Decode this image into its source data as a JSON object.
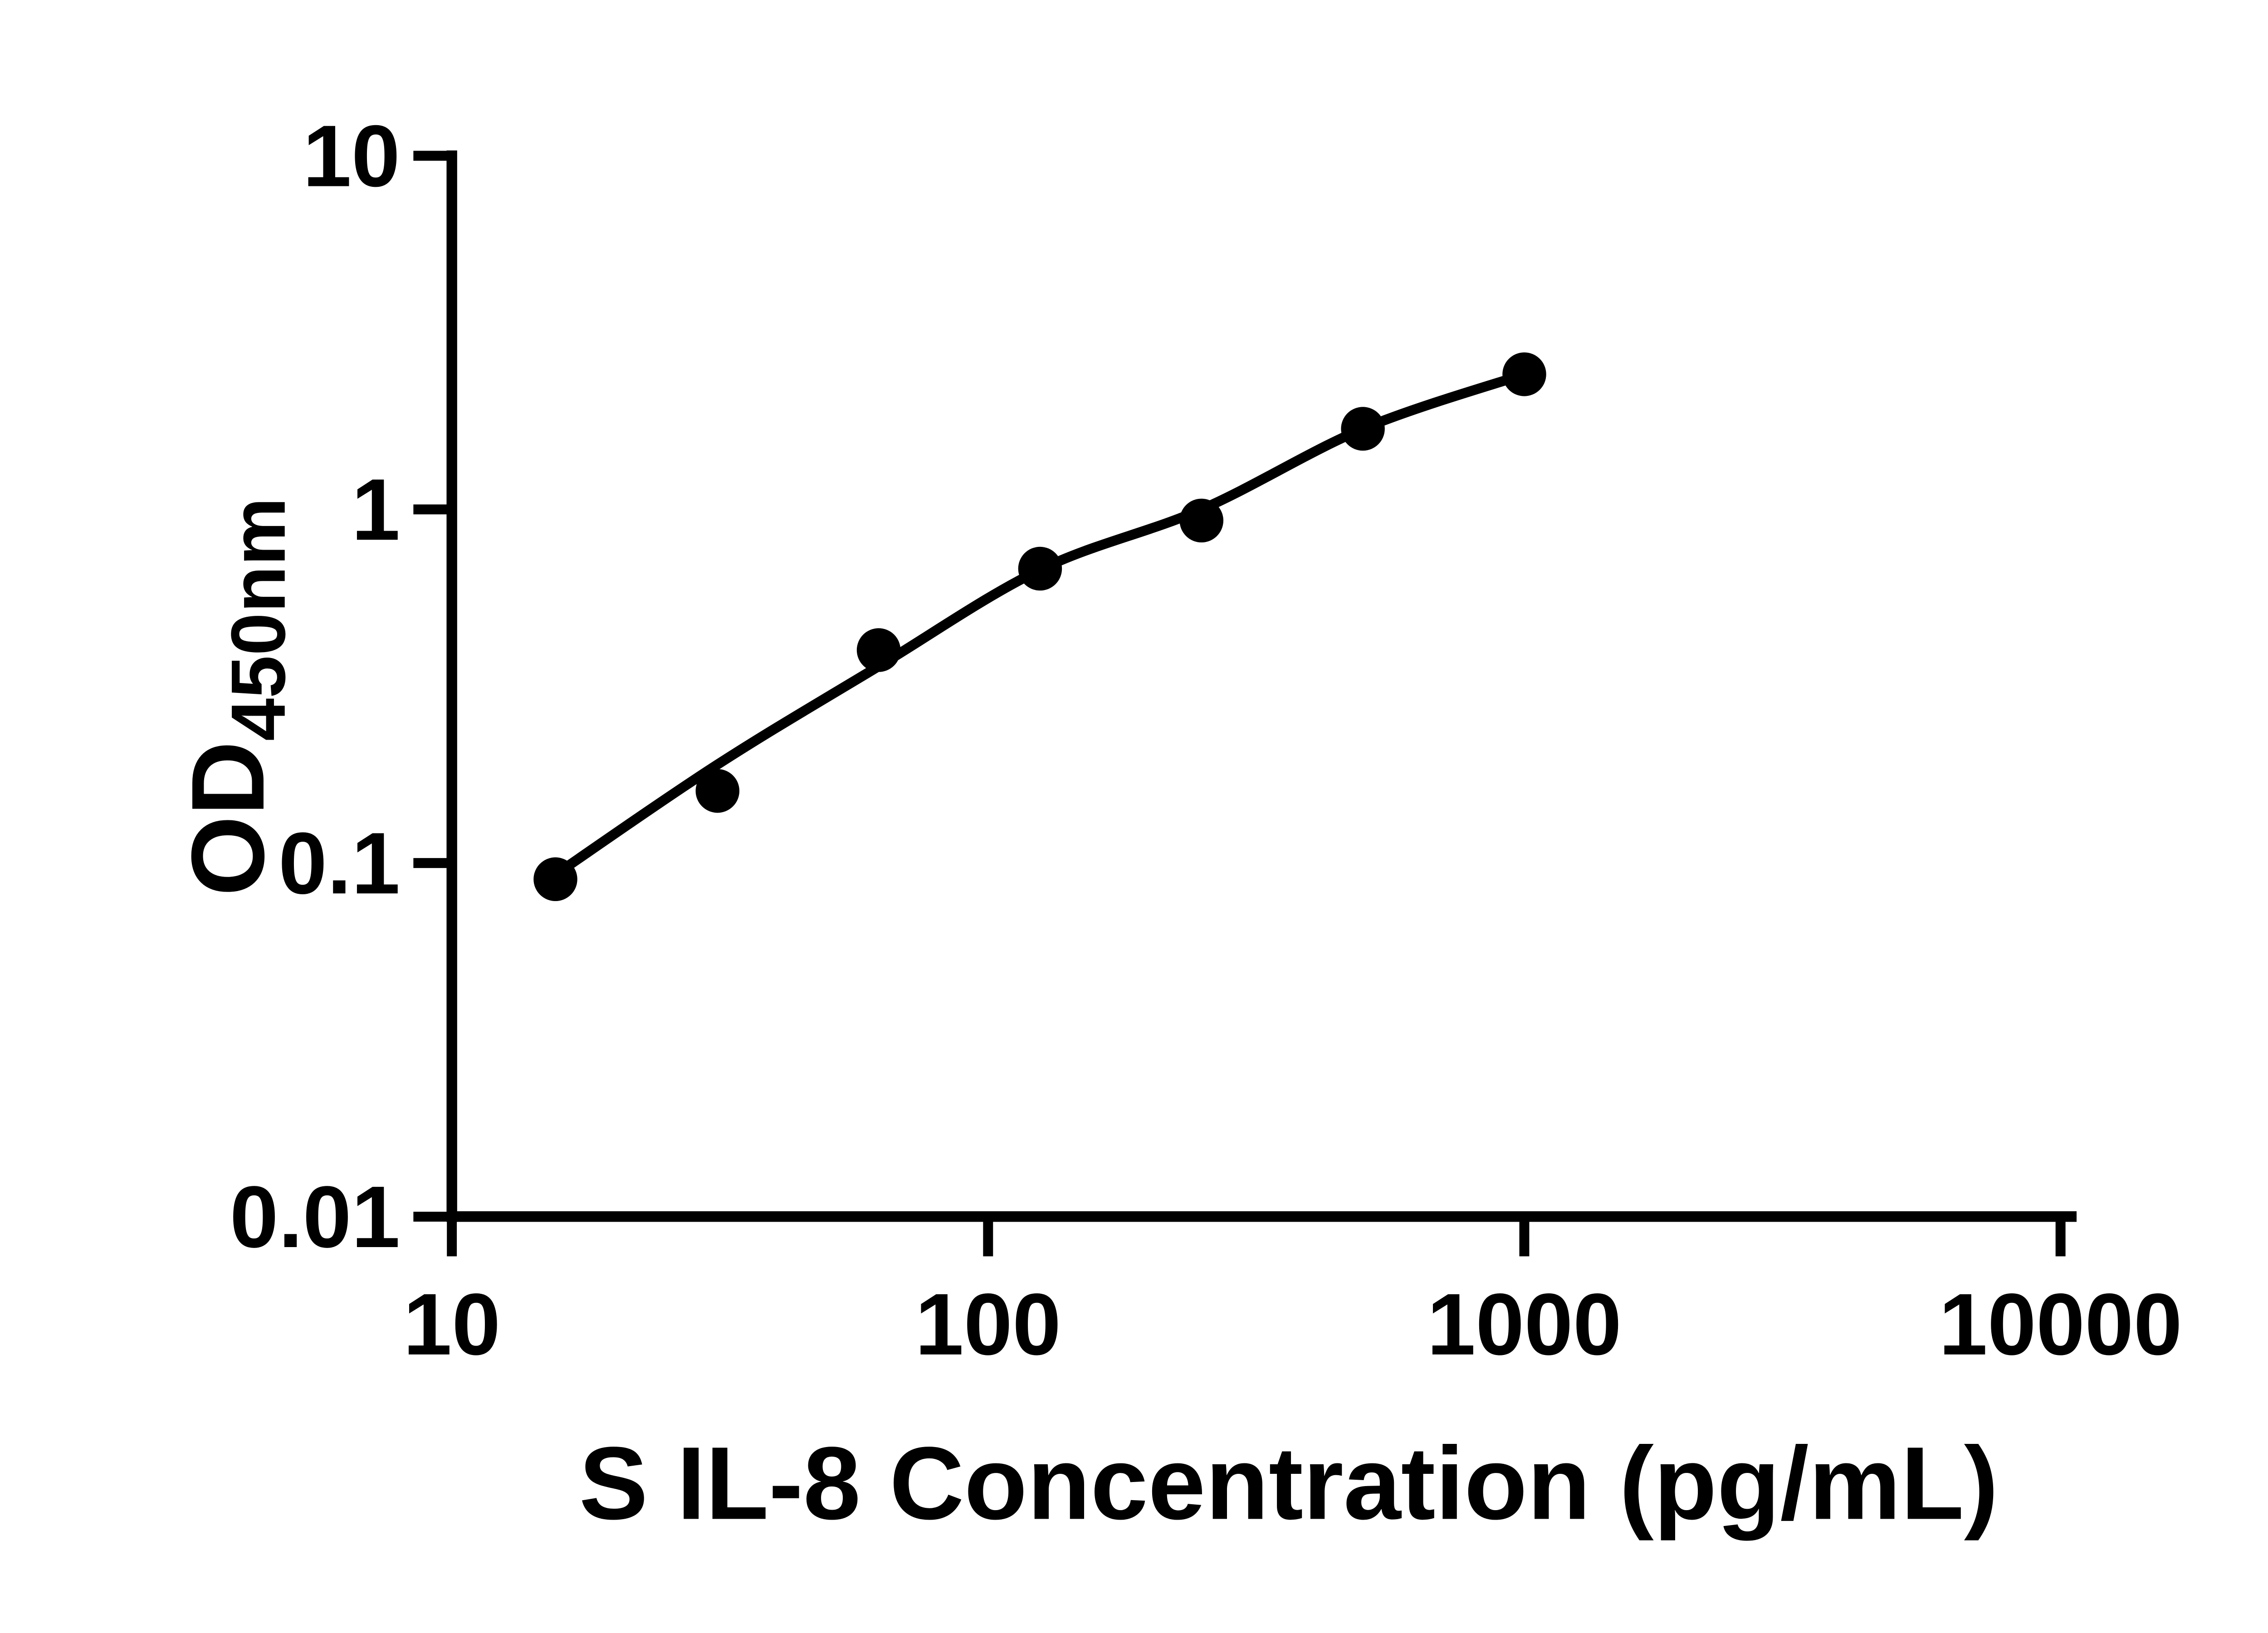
{
  "figure": {
    "background_color": "#ffffff",
    "ink_color": "#000000"
  },
  "chart_data": {
    "type": "scatter",
    "title": "",
    "xlabel": "S IL-8 Concentration (pg/mL)",
    "ylabel": "OD450nm",
    "ylabel_main": "OD",
    "ylabel_sub": "450nm",
    "x_scale": "log10",
    "y_scale": "log10",
    "xlim": [
      10,
      10000
    ],
    "ylim": [
      0.01,
      10
    ],
    "grid": false,
    "legend": "none",
    "x_ticks": [
      {
        "value": 10,
        "label": "10"
      },
      {
        "value": 100,
        "label": "100"
      },
      {
        "value": 1000,
        "label": "1000"
      },
      {
        "value": 10000,
        "label": "10000"
      }
    ],
    "y_ticks": [
      {
        "value": 10,
        "label": "10"
      },
      {
        "value": 1,
        "label": "1"
      },
      {
        "value": 0.1,
        "label": "0.1"
      },
      {
        "value": 0.01,
        "label": "0.01"
      }
    ],
    "series": [
      {
        "name": "standard-data-points",
        "role": "scatter",
        "marker": "filled-circle",
        "color": "#000000",
        "points": [
          {
            "x": 15.6,
            "od": 0.09
          },
          {
            "x": 31.3,
            "od": 0.16
          },
          {
            "x": 62.5,
            "od": 0.4
          },
          {
            "x": 125,
            "od": 0.68
          },
          {
            "x": 250,
            "od": 0.93
          },
          {
            "x": 500,
            "od": 1.69
          },
          {
            "x": 1000,
            "od": 2.41
          }
        ]
      },
      {
        "name": "fitted-standard-curve",
        "role": "line",
        "color": "#000000",
        "points": [
          {
            "x": 15.8,
            "od": 0.094
          },
          {
            "x": 31.3,
            "od": 0.19
          },
          {
            "x": 62.5,
            "od": 0.36
          },
          {
            "x": 125,
            "od": 0.675
          },
          {
            "x": 250,
            "od": 1.0
          },
          {
            "x": 500,
            "od": 1.69
          },
          {
            "x": 1000,
            "od": 2.41
          }
        ]
      }
    ]
  }
}
